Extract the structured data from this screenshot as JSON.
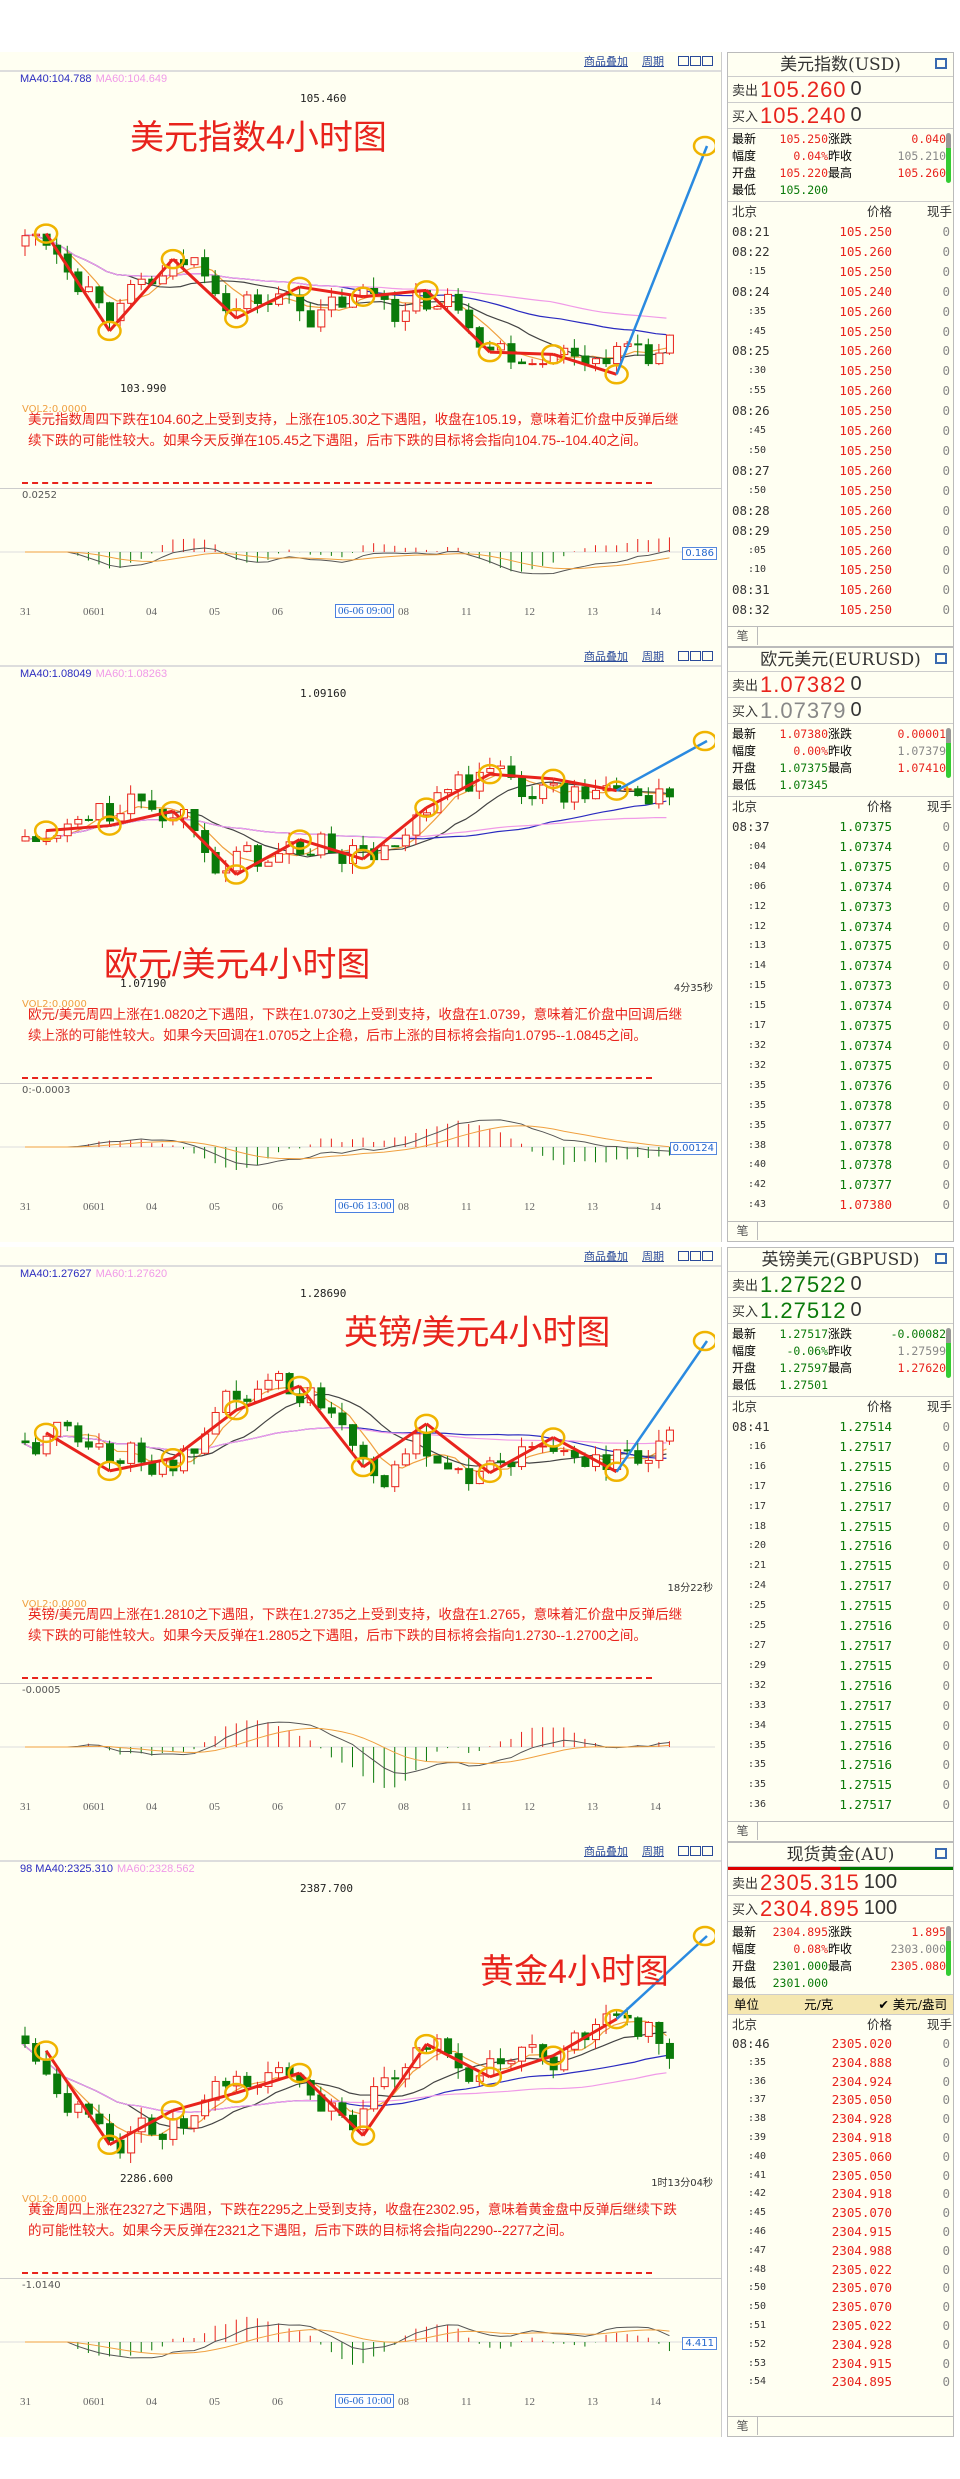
{
  "toolbar": {
    "overlay": "商品叠加",
    "period": "周期"
  },
  "footer_tab": "笔",
  "list_header": {
    "time": "北京",
    "price": "价格",
    "volume": "现手"
  },
  "stat_labels": {
    "latest": "最新",
    "change": "涨跌",
    "amplitude": "幅度",
    "prev_close": "昨收",
    "open": "开盘",
    "high": "最高",
    "low": "最低"
  },
  "quote_labels": {
    "sell": "卖出",
    "buy": "买入"
  },
  "colors": {
    "up": "#e8231c",
    "down": "#0a7a0a",
    "ma_blue": "#2b2bc0",
    "ma_pink": "#f09ae8",
    "ma_orange": "#f0a040",
    "arrow_blue": "#2a8ae0",
    "circle": "#f0b400"
  },
  "sections": [
    {
      "title": "美元指数4小时图",
      "ma40": "MA40:104.788",
      "ma60": "MA60:104.649",
      "high_label": "105.460",
      "low_label": "103.990",
      "vol_label": "VOL2:0.0000",
      "analysis": "美元指数周四下跌在104.60之上受到支持，上涨在105.30之下遇阻，收盘在105.19，意味着汇价盘中反弹后继续下跌的可能性较大。如果今天反弹在105.45之下遇阻，后市下跌的目标将会指向104.75--104.40之间。",
      "macd_label": "0.0252",
      "macd_value": "0.186",
      "countdown": "",
      "dates": [
        "31",
        "0601",
        "04",
        "05",
        "06",
        "06-06 09:00",
        "08",
        "11",
        "12",
        "13",
        "14"
      ],
      "panel": {
        "name": "美元指数(USD)",
        "sell": "105.260",
        "sell_qty": "0",
        "sell_color": "#e8231c",
        "buy": "105.240",
        "buy_qty": "0",
        "buy_color": "#e8231c",
        "stats": {
          "latest": [
            "105.250",
            "#e8231c"
          ],
          "change": [
            "0.040",
            "#e8231c"
          ],
          "amplitude": [
            "0.04%",
            "#e8231c"
          ],
          "prev_close": [
            "105.210",
            "#888"
          ],
          "open": [
            "105.220",
            "#e8231c"
          ],
          "high": [
            "105.260",
            "#e8231c"
          ],
          "low": [
            "105.200",
            "#0a7a0a"
          ]
        },
        "unit": null,
        "rows": [
          [
            "08:21",
            "105.250",
            "0"
          ],
          [
            "08:22",
            "105.260",
            "0"
          ],
          [
            ":15",
            "105.250",
            "0"
          ],
          [
            "08:24",
            "105.240",
            "0"
          ],
          [
            ":35",
            "105.260",
            "0"
          ],
          [
            ":45",
            "105.250",
            "0"
          ],
          [
            "08:25",
            "105.260",
            "0"
          ],
          [
            ":30",
            "105.250",
            "0"
          ],
          [
            ":55",
            "105.260",
            "0"
          ],
          [
            "08:26",
            "105.250",
            "0"
          ],
          [
            ":45",
            "105.260",
            "0"
          ],
          [
            ":50",
            "105.250",
            "0"
          ],
          [
            "08:27",
            "105.260",
            "0"
          ],
          [
            ":50",
            "105.250",
            "0"
          ],
          [
            "08:28",
            "105.260",
            "0"
          ],
          [
            "08:29",
            "105.250",
            "0"
          ],
          [
            ":05",
            "105.260",
            "0"
          ],
          [
            ":10",
            "105.250",
            "0"
          ],
          [
            "08:31",
            "105.260",
            "0"
          ],
          [
            "08:32",
            "105.250",
            "0"
          ]
        ],
        "row_color": "#e8231c"
      }
    },
    {
      "title": "欧元/美元4小时图",
      "ma40": "MA40:1.08049",
      "ma60": "MA60:1.08263",
      "high_label": "1.09160",
      "low_label": "1.07190",
      "vol_label": "VOL2:0.0000",
      "analysis": "欧元/美元周四上涨在1.0820之下遇阻，下跌在1.0730之上受到支持，收盘在1.0739，意味着汇价盘中回调后继续上涨的可能性较大。如果今天回调在1.0705之上企稳，后市上涨的目标将会指向1.0795--1.0845之间。",
      "macd_label": "0:-0.0003",
      "macd_value": "0.00124",
      "countdown": "4分35秒",
      "dates": [
        "31",
        "0601",
        "04",
        "05",
        "06",
        "06-06 13:00",
        "08",
        "11",
        "12",
        "13",
        "14"
      ],
      "panel": {
        "name": "欧元美元(EURUSD)",
        "sell": "1.07382",
        "sell_qty": "0",
        "sell_color": "#e8231c",
        "buy": "1.07379",
        "buy_qty": "0",
        "buy_color": "#888",
        "stats": {
          "latest": [
            "1.07380",
            "#e8231c"
          ],
          "change": [
            "0.00001",
            "#e8231c"
          ],
          "amplitude": [
            "0.00%",
            "#e8231c"
          ],
          "prev_close": [
            "1.07379",
            "#888"
          ],
          "open": [
            "1.07375",
            "#0a7a0a"
          ],
          "high": [
            "1.07410",
            "#e8231c"
          ],
          "low": [
            "1.07345",
            "#0a7a0a"
          ]
        },
        "unit": null,
        "rows": [
          [
            "08:37",
            "1.07375",
            "0"
          ],
          [
            ":04",
            "1.07374",
            "0"
          ],
          [
            ":04",
            "1.07375",
            "0"
          ],
          [
            ":06",
            "1.07374",
            "0"
          ],
          [
            ":12",
            "1.07373",
            "0"
          ],
          [
            ":12",
            "1.07374",
            "0"
          ],
          [
            ":13",
            "1.07375",
            "0"
          ],
          [
            ":14",
            "1.07374",
            "0"
          ],
          [
            ":15",
            "1.07373",
            "0"
          ],
          [
            ":15",
            "1.07374",
            "0"
          ],
          [
            ":17",
            "1.07375",
            "0"
          ],
          [
            ":32",
            "1.07374",
            "0"
          ],
          [
            ":32",
            "1.07375",
            "0"
          ],
          [
            ":35",
            "1.07376",
            "0"
          ],
          [
            ":35",
            "1.07378",
            "0"
          ],
          [
            ":35",
            "1.07377",
            "0"
          ],
          [
            ":38",
            "1.07378",
            "0"
          ],
          [
            ":40",
            "1.07378",
            "0"
          ],
          [
            ":42",
            "1.07377",
            "0"
          ],
          [
            ":43",
            "1.07380",
            "0",
            "#e8231c"
          ]
        ],
        "row_color": "#0a7a0a"
      }
    },
    {
      "title": "英镑/美元4小时图",
      "ma40": "MA40:1.27627",
      "ma60": "MA60:1.27620",
      "high_label": "1.28690",
      "low_label": "",
      "vol_label": "VOL2:0.0000",
      "analysis": "英镑/美元周四上涨在1.2810之下遇阻，下跌在1.2735之上受到支持，收盘在1.2765，意味着汇价盘中反弹后继续下跌的可能性较大。如果今天反弹在1.2805之下遇阻，后市下跌的目标将会指向1.2730--1.2700之间。",
      "macd_label": "-0.0005",
      "macd_value": "",
      "countdown": "18分22秒",
      "dates": [
        "31",
        "0601",
        "04",
        "05",
        "06",
        "07",
        "08",
        "11",
        "12",
        "13",
        "14"
      ],
      "panel": {
        "name": "英镑美元(GBPUSD)",
        "sell": "1.27522",
        "sell_qty": "0",
        "sell_color": "#0a7a0a",
        "buy": "1.27512",
        "buy_qty": "0",
        "buy_color": "#0a7a0a",
        "stats": {
          "latest": [
            "1.27517",
            "#0a7a0a"
          ],
          "change": [
            "-0.00082",
            "#0a7a0a"
          ],
          "amplitude": [
            "-0.06%",
            "#0a7a0a"
          ],
          "prev_close": [
            "1.27599",
            "#888"
          ],
          "open": [
            "1.27597",
            "#0a7a0a"
          ],
          "high": [
            "1.27620",
            "#e8231c"
          ],
          "low": [
            "1.27501",
            "#0a7a0a"
          ]
        },
        "unit": null,
        "rows": [
          [
            "08:41",
            "1.27514",
            "0"
          ],
          [
            ":16",
            "1.27517",
            "0"
          ],
          [
            ":16",
            "1.27515",
            "0"
          ],
          [
            ":17",
            "1.27516",
            "0"
          ],
          [
            ":17",
            "1.27517",
            "0"
          ],
          [
            ":18",
            "1.27515",
            "0"
          ],
          [
            ":20",
            "1.27516",
            "0"
          ],
          [
            ":21",
            "1.27515",
            "0"
          ],
          [
            ":24",
            "1.27517",
            "0"
          ],
          [
            ":25",
            "1.27515",
            "0"
          ],
          [
            ":25",
            "1.27516",
            "0"
          ],
          [
            ":27",
            "1.27517",
            "0"
          ],
          [
            ":29",
            "1.27515",
            "0"
          ],
          [
            ":32",
            "1.27516",
            "0"
          ],
          [
            ":33",
            "1.27517",
            "0"
          ],
          [
            ":34",
            "1.27515",
            "0"
          ],
          [
            ":35",
            "1.27516",
            "0"
          ],
          [
            ":35",
            "1.27516",
            "0"
          ],
          [
            ":35",
            "1.27515",
            "0"
          ],
          [
            ":36",
            "1.27517",
            "0"
          ]
        ],
        "row_color": "#0a7a0a"
      }
    },
    {
      "title": "黄金4小时图",
      "ma40": "98 MA40:2325.310",
      "ma60": "MA60:2328.562",
      "high_label": "2387.700",
      "low_label": "2286.600",
      "vol_label": "VOL2:0.0000",
      "analysis": "黄金周四上涨在2327之下遇阻，下跌在2295之上受到支持，收盘在2302.95，意味着黄金盘中反弹后继续下跌的可能性较大。如果今天反弹在2321之下遇阻，后市下跌的目标将会指向2290--2277之间。",
      "macd_label": "-1.0140",
      "macd_value": "4.411",
      "countdown": "1时13分04秒",
      "dates": [
        "31",
        "0601",
        "04",
        "05",
        "06",
        "06-06 10:00",
        "08",
        "11",
        "12",
        "13",
        "14"
      ],
      "panel": {
        "name": "现货黄金(AU)",
        "sell": "2305.315",
        "sell_qty": "100",
        "sell_color": "#e8231c",
        "buy": "2304.895",
        "buy_qty": "100",
        "buy_color": "#e8231c",
        "stats": {
          "latest": [
            "2304.895",
            "#e8231c"
          ],
          "change": [
            "1.895",
            "#e8231c"
          ],
          "amplitude": [
            "0.08%",
            "#e8231c"
          ],
          "prev_close": [
            "2303.000",
            "#888"
          ],
          "open": [
            "2301.000",
            "#0a7a0a"
          ],
          "high": [
            "2305.080",
            "#e8231c"
          ],
          "low": [
            "2301.000",
            "#0a7a0a"
          ]
        },
        "unit": {
          "label": "单位",
          "a": "元/克",
          "b": "✔ 美元/盎司"
        },
        "rows": [
          [
            "08:46",
            "2305.020",
            "0"
          ],
          [
            ":35",
            "2304.888",
            "0"
          ],
          [
            ":36",
            "2304.924",
            "0"
          ],
          [
            ":37",
            "2305.050",
            "0"
          ],
          [
            ":38",
            "2304.928",
            "0"
          ],
          [
            ":39",
            "2304.918",
            "0"
          ],
          [
            ":40",
            "2305.060",
            "0"
          ],
          [
            ":41",
            "2305.050",
            "0"
          ],
          [
            ":42",
            "2304.918",
            "0"
          ],
          [
            ":45",
            "2305.070",
            "0"
          ],
          [
            ":46",
            "2304.915",
            "0"
          ],
          [
            ":47",
            "2304.988",
            "0"
          ],
          [
            ":48",
            "2305.022",
            "0"
          ],
          [
            ":50",
            "2305.070",
            "0"
          ],
          [
            ":50",
            "2305.070",
            "0"
          ],
          [
            ":51",
            "2305.022",
            "0"
          ],
          [
            ":52",
            "2304.928",
            "0"
          ],
          [
            ":53",
            "2304.915",
            "0"
          ],
          [
            ":54",
            "2304.895",
            "0"
          ]
        ],
        "row_color": "#e8231c"
      }
    }
  ]
}
